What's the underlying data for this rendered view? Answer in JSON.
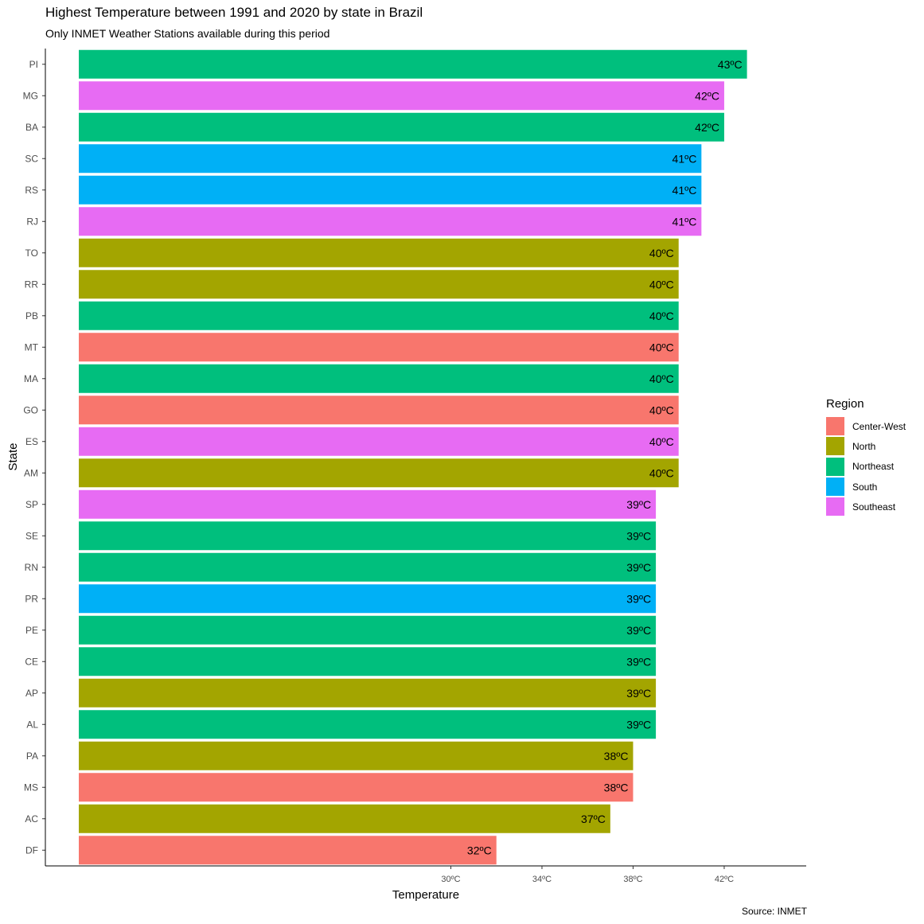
{
  "chart_data": {
    "type": "bar",
    "orientation": "horizontal",
    "title": "Highest Temperature between 1991 and 2020 by state in Brazil",
    "subtitle": "Only INMET Weather Stations available during this period",
    "caption": "Source: INMET",
    "xlabel": "Temperature",
    "ylabel": "State",
    "x_ticks": [
      {
        "value": 30,
        "label": "30ºC"
      },
      {
        "value": 34,
        "label": "34ºC"
      },
      {
        "value": 38,
        "label": "38ºC"
      },
      {
        "value": 42,
        "label": "42ºC"
      }
    ],
    "xlim": [
      12.2,
      45.6
    ],
    "legend_title": "Region",
    "legend_position": "right",
    "regions": [
      {
        "name": "Center-West",
        "color": "#F8766D"
      },
      {
        "name": "North",
        "color": "#A3A500"
      },
      {
        "name": "Northeast",
        "color": "#00BF7D"
      },
      {
        "name": "South",
        "color": "#00B0F6"
      },
      {
        "name": "Southeast",
        "color": "#E76BF3"
      }
    ],
    "bars": [
      {
        "state": "PI",
        "value": 43,
        "label": "43ºC",
        "region": "Northeast"
      },
      {
        "state": "MG",
        "value": 42,
        "label": "42ºC",
        "region": "Southeast"
      },
      {
        "state": "BA",
        "value": 42,
        "label": "42ºC",
        "region": "Northeast"
      },
      {
        "state": "SC",
        "value": 41,
        "label": "41ºC",
        "region": "South"
      },
      {
        "state": "RS",
        "value": 41,
        "label": "41ºC",
        "region": "South"
      },
      {
        "state": "RJ",
        "value": 41,
        "label": "41ºC",
        "region": "Southeast"
      },
      {
        "state": "TO",
        "value": 40,
        "label": "40ºC",
        "region": "North"
      },
      {
        "state": "RR",
        "value": 40,
        "label": "40ºC",
        "region": "North"
      },
      {
        "state": "PB",
        "value": 40,
        "label": "40ºC",
        "region": "Northeast"
      },
      {
        "state": "MT",
        "value": 40,
        "label": "40ºC",
        "region": "Center-West"
      },
      {
        "state": "MA",
        "value": 40,
        "label": "40ºC",
        "region": "Northeast"
      },
      {
        "state": "GO",
        "value": 40,
        "label": "40ºC",
        "region": "Center-West"
      },
      {
        "state": "ES",
        "value": 40,
        "label": "40ºC",
        "region": "Southeast"
      },
      {
        "state": "AM",
        "value": 40,
        "label": "40ºC",
        "region": "North"
      },
      {
        "state": "SP",
        "value": 39,
        "label": "39ºC",
        "region": "Southeast"
      },
      {
        "state": "SE",
        "value": 39,
        "label": "39ºC",
        "region": "Northeast"
      },
      {
        "state": "RN",
        "value": 39,
        "label": "39ºC",
        "region": "Northeast"
      },
      {
        "state": "PR",
        "value": 39,
        "label": "39ºC",
        "region": "South"
      },
      {
        "state": "PE",
        "value": 39,
        "label": "39ºC",
        "region": "Northeast"
      },
      {
        "state": "CE",
        "value": 39,
        "label": "39ºC",
        "region": "Northeast"
      },
      {
        "state": "AP",
        "value": 39,
        "label": "39ºC",
        "region": "North"
      },
      {
        "state": "AL",
        "value": 39,
        "label": "39ºC",
        "region": "Northeast"
      },
      {
        "state": "PA",
        "value": 38,
        "label": "38ºC",
        "region": "North"
      },
      {
        "state": "MS",
        "value": 38,
        "label": "38ºC",
        "region": "Center-West"
      },
      {
        "state": "AC",
        "value": 37,
        "label": "37ºC",
        "region": "North"
      },
      {
        "state": "DF",
        "value": 32,
        "label": "32ºC",
        "region": "Center-West"
      }
    ]
  }
}
